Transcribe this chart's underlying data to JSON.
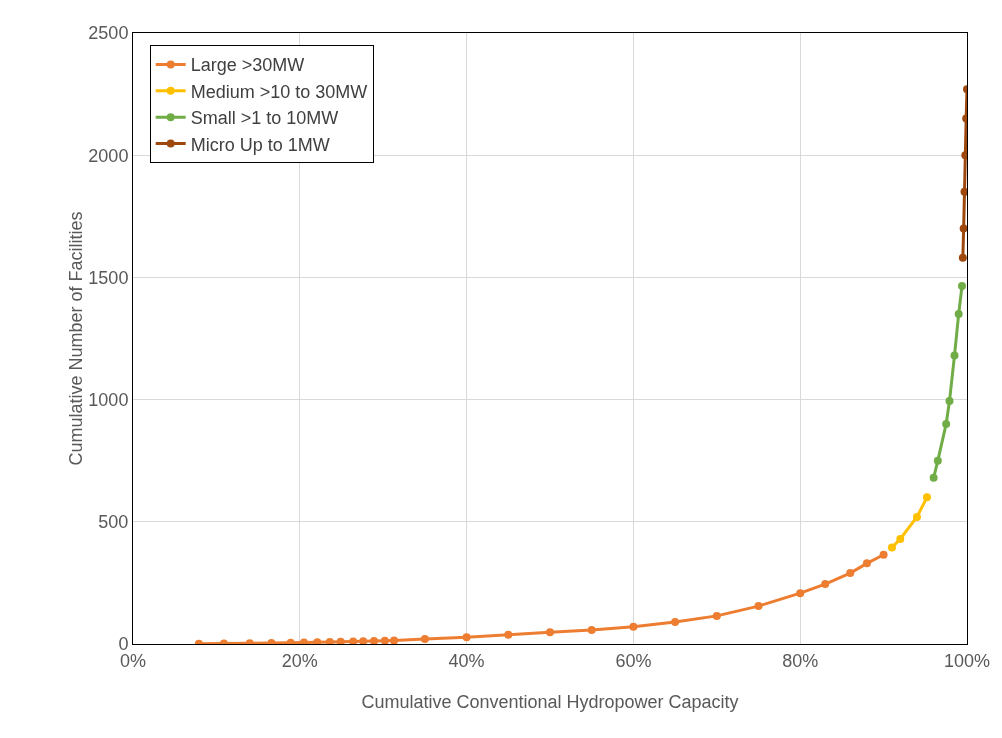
{
  "chart_data": {
    "type": "line",
    "xlabel": "Cumulative Conventional Hydropower Capacity",
    "ylabel": "Cumulative Number of Facilities",
    "xlim": [
      0,
      100
    ],
    "xticks": [
      {
        "value": 0,
        "label": "0%"
      },
      {
        "value": 20,
        "label": "20%"
      },
      {
        "value": 40,
        "label": "40%"
      },
      {
        "value": 60,
        "label": "60%"
      },
      {
        "value": 80,
        "label": "80%"
      },
      {
        "value": 100,
        "label": "100%"
      }
    ],
    "ylim": [
      0,
      2500
    ],
    "yticks": [
      0,
      500,
      1000,
      1500,
      2000,
      2500
    ],
    "grid": true,
    "legend": "top left",
    "marker": "circle",
    "line_style": "solid",
    "series": [
      {
        "name": "Large >30MW",
        "color": "#ed7d31",
        "x": [
          7.9,
          10.9,
          14.0,
          16.6,
          18.9,
          20.5,
          22.1,
          23.6,
          24.9,
          26.4,
          27.6,
          28.9,
          30.2,
          31.3,
          35,
          40,
          45,
          50,
          55,
          60,
          65,
          70,
          75,
          80,
          83,
          86,
          88,
          90
        ],
        "values": [
          1,
          2,
          3,
          4,
          5,
          6,
          7,
          8,
          9,
          10,
          11,
          12,
          13,
          14,
          20,
          28,
          38,
          48,
          57,
          71,
          90,
          115,
          155,
          208,
          245,
          290,
          330,
          365
        ]
      },
      {
        "name": "Medium >10 to 30MW",
        "color": "#ffc000",
        "x": [
          91,
          92,
          94,
          95.2
        ],
        "values": [
          395,
          430,
          520,
          600
        ]
      },
      {
        "name": "Small >1 to 10MW",
        "color": "#70ad47",
        "x": [
          96.0,
          96.5,
          97.5,
          97.9,
          98.5,
          99.0,
          99.4
        ],
        "values": [
          680,
          750,
          900,
          994,
          1180,
          1350,
          1465
        ]
      },
      {
        "name": "Micro Up to 1MW",
        "color": "#9e480e",
        "x": [
          99.5,
          99.6,
          99.7,
          99.8,
          99.9,
          100
        ],
        "values": [
          1580,
          1700,
          1850,
          2000,
          2150,
          2270
        ]
      }
    ]
  }
}
